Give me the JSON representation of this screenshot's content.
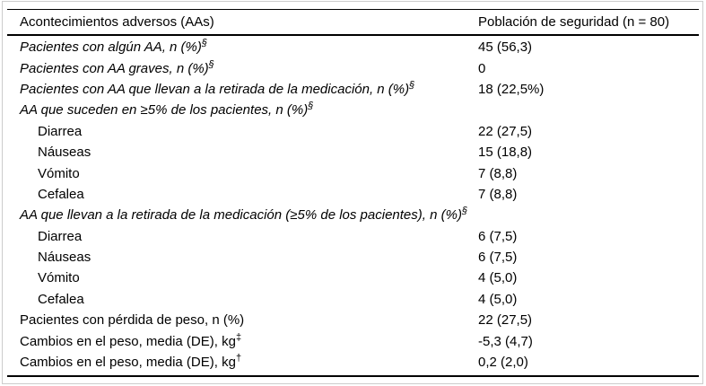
{
  "table": {
    "header": {
      "col1": "Acontecimientos adversos (AAs)",
      "col2": "Población de seguridad (n = 80)"
    },
    "rows": [
      {
        "label": "Pacientes con algún AA, n (%)",
        "sup": "§",
        "value": "45 (56,3)",
        "italic": true,
        "indent": false
      },
      {
        "label": "Pacientes con AA graves, n (%)",
        "sup": "§",
        "value": "0",
        "italic": true,
        "indent": false
      },
      {
        "label": "Pacientes con AA que llevan a la retirada de la medicación, n (%)",
        "sup": "§",
        "value": "18 (22,5%)",
        "italic": true,
        "indent": false
      },
      {
        "label": "AA que suceden en ≥5% de los pacientes, n (%)",
        "sup": "§",
        "value": "",
        "italic": true,
        "indent": false
      },
      {
        "label": "Diarrea",
        "sup": "",
        "value": "22 (27,5)",
        "italic": false,
        "indent": true
      },
      {
        "label": "Náuseas",
        "sup": "",
        "value": "15 (18,8)",
        "italic": false,
        "indent": true
      },
      {
        "label": "Vómito",
        "sup": "",
        "value": "7 (8,8)",
        "italic": false,
        "indent": true
      },
      {
        "label": "Cefalea",
        "sup": "",
        "value": "7 (8,8)",
        "italic": false,
        "indent": true
      },
      {
        "label": "AA que llevan a la retirada de la medicación (≥5% de los pacientes), n (%)",
        "sup": "§",
        "value": "",
        "italic": true,
        "indent": false
      },
      {
        "label": "Diarrea",
        "sup": "",
        "value": "6 (7,5)",
        "italic": false,
        "indent": true
      },
      {
        "label": "Náuseas",
        "sup": "",
        "value": "6 (7,5)",
        "italic": false,
        "indent": true
      },
      {
        "label": "Vómito",
        "sup": "",
        "value": "4 (5,0)",
        "italic": false,
        "indent": true
      },
      {
        "label": "Cefalea",
        "sup": "",
        "value": "4 (5,0)",
        "italic": false,
        "indent": true
      },
      {
        "label": "Pacientes con pérdida de peso, n (%)",
        "sup": "",
        "value": "22 (27,5)",
        "italic": false,
        "indent": false
      },
      {
        "label": "Cambios en el peso, media (DE), kg",
        "sup": "‡",
        "value": "-5,3 (4,7)",
        "italic": false,
        "indent": false
      },
      {
        "label": "Cambios en el peso, media (DE), kg",
        "sup": "†",
        "value": "0,2 (2,0)",
        "italic": false,
        "indent": false
      }
    ]
  },
  "colors": {
    "text": "#000000",
    "rule": "#000000",
    "frame": "#cccccc",
    "background": "#ffffff"
  }
}
